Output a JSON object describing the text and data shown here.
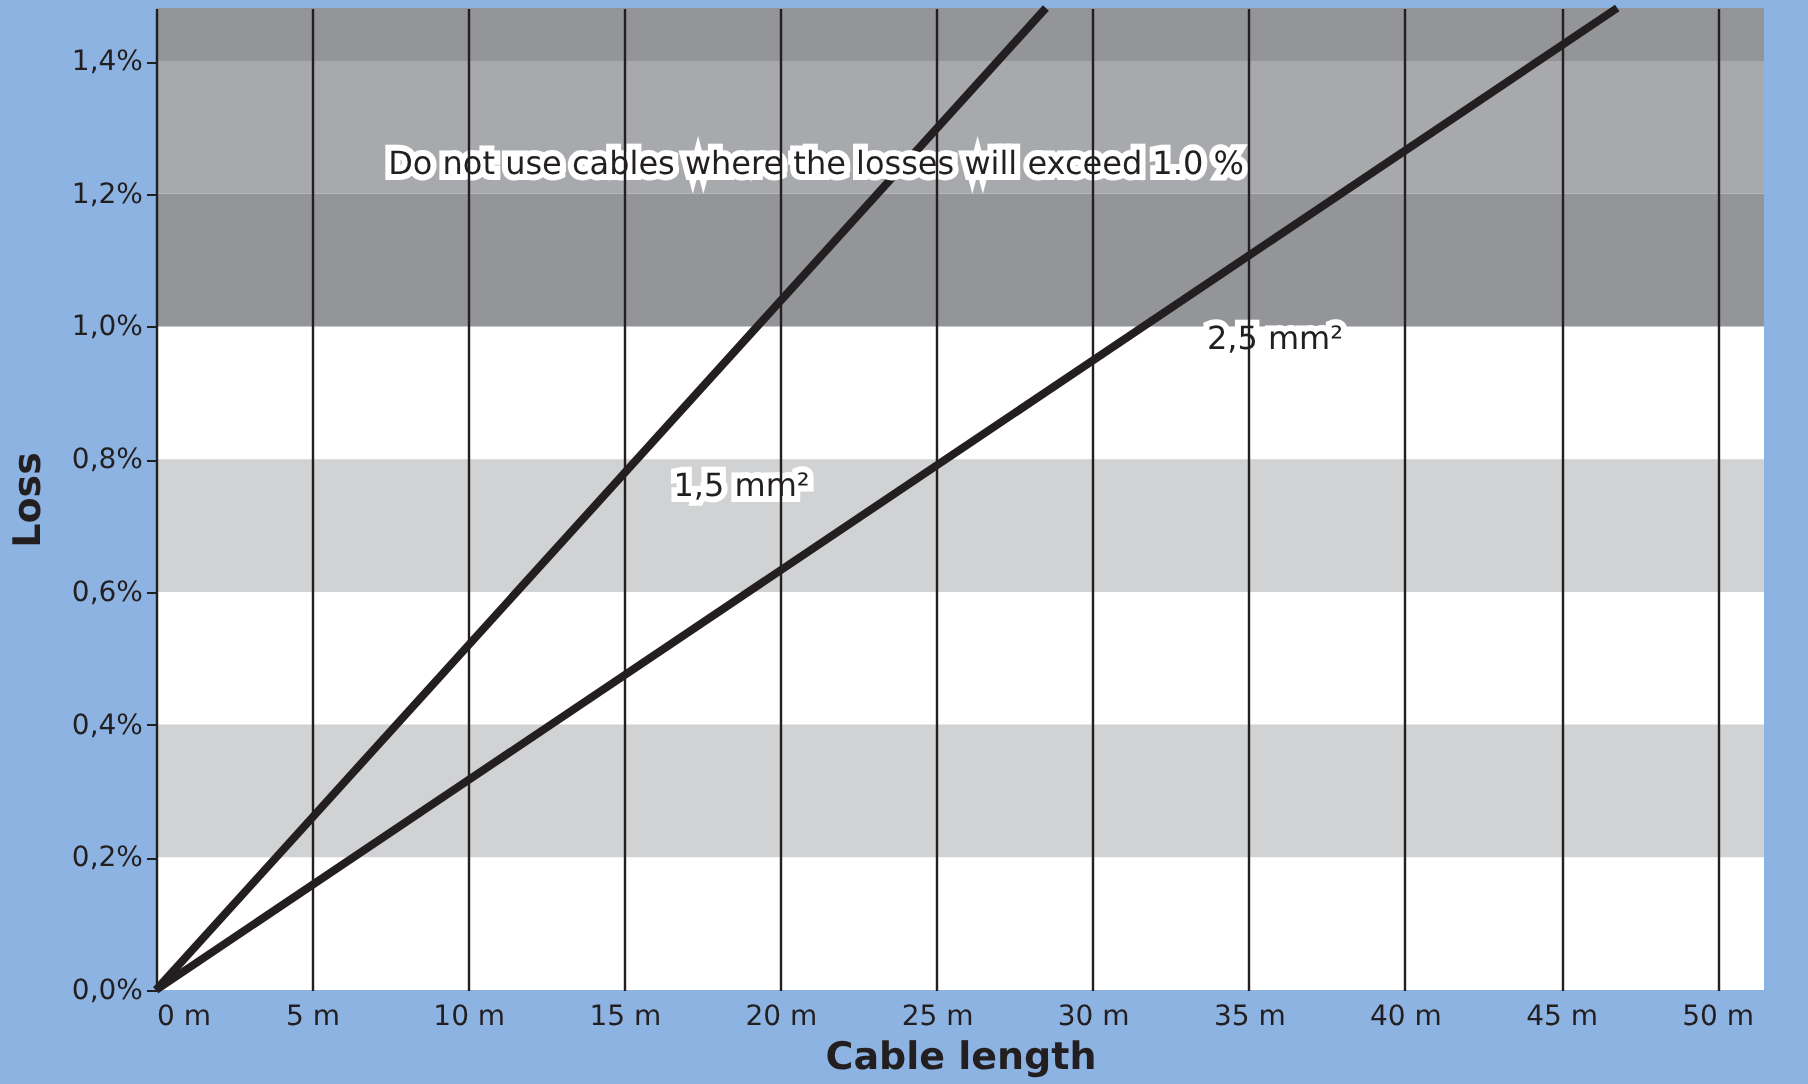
{
  "chart_data": {
    "type": "line",
    "xlabel": "Cable length",
    "ylabel": "Loss",
    "series": [
      {
        "name": "1,5 mm²",
        "color": "#231f20",
        "x": [
          0,
          28.5
        ],
        "values": [
          0,
          1.48
        ]
      },
      {
        "name": "2,5 mm²",
        "color": "#231f20",
        "x": [
          0,
          46.8
        ],
        "values": [
          0,
          1.48
        ]
      }
    ],
    "xlim": [
      0,
      51.5
    ],
    "ylim": [
      0,
      1.48
    ],
    "xticks": [
      {
        "value": 0,
        "label": "0 m"
      },
      {
        "value": 5,
        "label": "5 m"
      },
      {
        "value": 10,
        "label": "10 m"
      },
      {
        "value": 15,
        "label": "15 m"
      },
      {
        "value": 20,
        "label": "20 m"
      },
      {
        "value": 25,
        "label": "25 m"
      },
      {
        "value": 30,
        "label": "30 m"
      },
      {
        "value": 35,
        "label": "35 m"
      },
      {
        "value": 40,
        "label": "40 m"
      },
      {
        "value": 45,
        "label": "45 m"
      },
      {
        "value": 50,
        "label": "50 m"
      }
    ],
    "yticks": [
      {
        "value": 0,
        "label": "0,0%"
      },
      {
        "value": 0.2,
        "label": "0,2%"
      },
      {
        "value": 0.4,
        "label": "0,4%"
      },
      {
        "value": 0.6,
        "label": "0,6%"
      },
      {
        "value": 0.8,
        "label": "0,8%"
      },
      {
        "value": 1.0,
        "label": "1,0%"
      },
      {
        "value": 1.2,
        "label": "1,2%"
      },
      {
        "value": 1.4,
        "label": "1,4%"
      }
    ],
    "bands": [
      {
        "axis": "y",
        "from": 0.2,
        "to": 0.4,
        "color": "#d1d2d4"
      },
      {
        "axis": "y",
        "from": 0.6,
        "to": 0.8,
        "color": "#d1d2d4"
      },
      {
        "axis": "y",
        "from": 1.0,
        "to": 1.2,
        "color": "#939598"
      },
      {
        "axis": "y",
        "from": 1.2,
        "to": 1.4,
        "color": "#a7a9ac"
      },
      {
        "axis": "y",
        "from": 1.4,
        "to": 1.48,
        "color": "#939598"
      }
    ],
    "annotations": [
      "Do not use cables where the losses will exceed 1.0 %"
    ],
    "grid": "x",
    "legend": false,
    "marker": "none",
    "line_style": "solid"
  }
}
